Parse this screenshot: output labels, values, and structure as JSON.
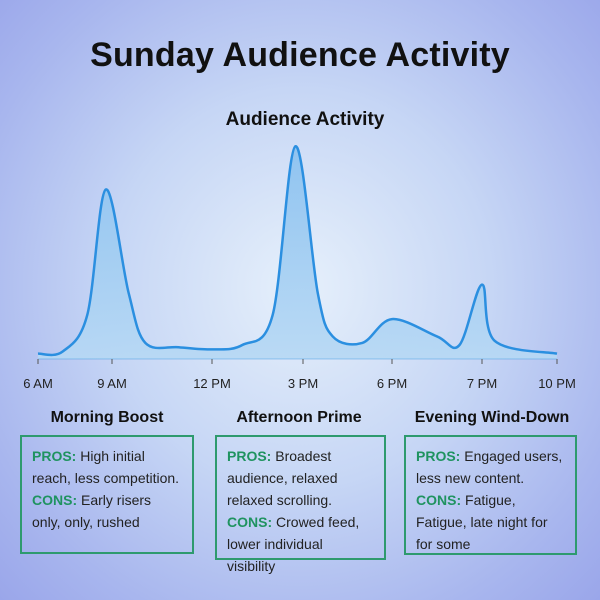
{
  "title": "Sunday Audience Activity",
  "chart_data": {
    "type": "area",
    "title": "Audience Activity",
    "xlabel": "",
    "ylabel": "",
    "x_tick_labels": [
      "6 AM",
      "9 AM",
      "12 PM",
      "3 PM",
      "6 PM",
      "7 PM",
      "10 PM"
    ],
    "series": [
      {
        "values": [
          {
            "t": "6 AM",
            "v": 2
          },
          {
            "t": "7 AM",
            "v": 3
          },
          {
            "t": "8 AM",
            "v": 20
          },
          {
            "t": "8:45 AM",
            "v": 78
          },
          {
            "t": "9:30 AM",
            "v": 30
          },
          {
            "t": "10 AM",
            "v": 7
          },
          {
            "t": "11 AM",
            "v": 5
          },
          {
            "t": "12 PM",
            "v": 4
          },
          {
            "t": "1 PM",
            "v": 6
          },
          {
            "t": "2 PM",
            "v": 20
          },
          {
            "t": "2:45 PM",
            "v": 98
          },
          {
            "t": "3:30 PM",
            "v": 30
          },
          {
            "t": "4 PM",
            "v": 10
          },
          {
            "t": "5 PM",
            "v": 7
          },
          {
            "t": "6 PM",
            "v": 18
          },
          {
            "t": "6:30 PM",
            "v": 10
          },
          {
            "t": "6:45 PM",
            "v": 6
          },
          {
            "t": "7 PM",
            "v": 34
          },
          {
            "t": "7:30 PM",
            "v": 8
          },
          {
            "t": "10 PM",
            "v": 2
          }
        ]
      }
    ],
    "ylim": [
      0,
      100
    ],
    "grid": false,
    "colors": {
      "line": "#2b8fe0",
      "fill": "#9ccaf0"
    }
  },
  "sections": [
    {
      "heading": "Morning Boost",
      "pros_label": "PROS:",
      "pros_text": "High initial reach, less competition.",
      "cons_label": "CONS:",
      "cons_text": "Early risers only, only, rushed"
    },
    {
      "heading": "Afternoon Prime",
      "pros_label": "PROS:",
      "pros_text": "Broadest audience, relaxed relaxed scrolling.",
      "cons_label": "CONS:",
      "cons_text": "Crowed feed, lower individual visibility"
    },
    {
      "heading": "Evening Wind-Down",
      "pros_label": "PROS:",
      "pros_text": "Engaged users, less new content.",
      "cons_label": "CONS:",
      "cons_text": "Fatigue, Fatigue, late night for for some"
    }
  ]
}
